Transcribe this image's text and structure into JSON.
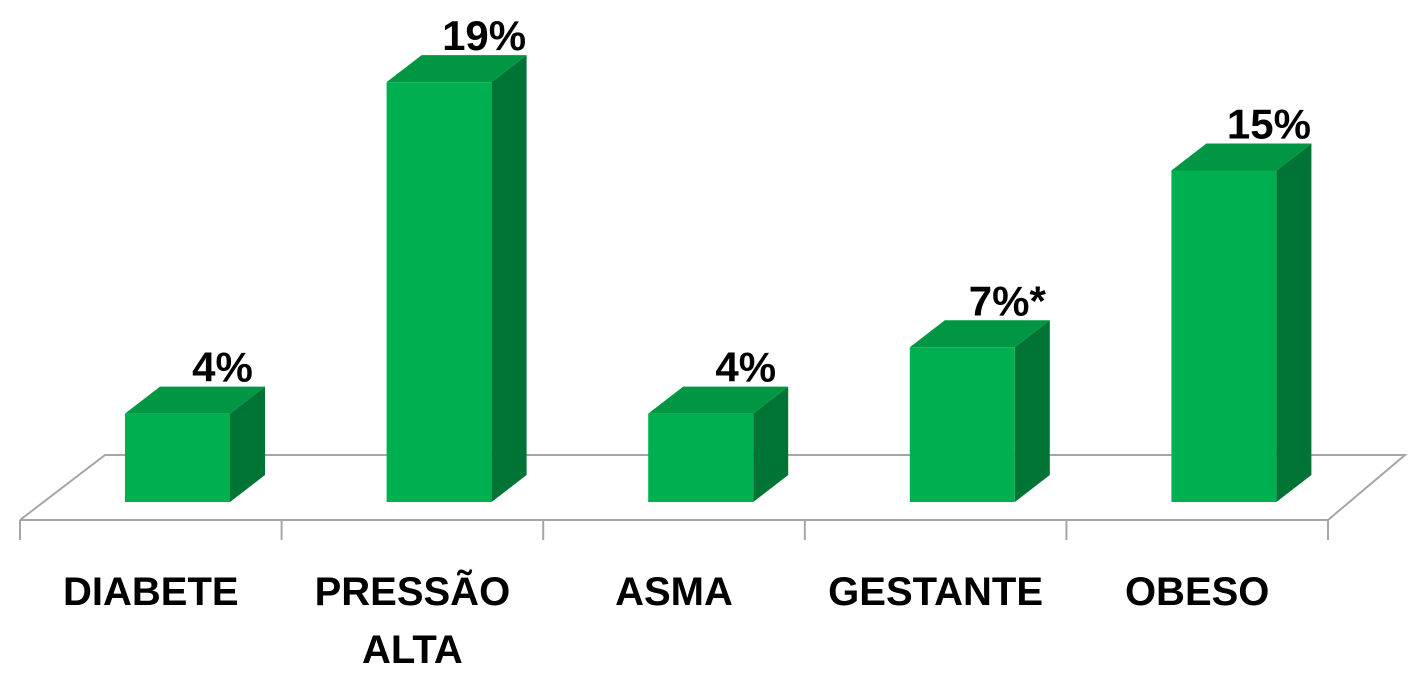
{
  "chart_data": {
    "type": "bar",
    "categories": [
      "DIABETE",
      "PRESSÃO ALTA",
      "ASMA",
      "GESTANTE",
      "OBESO"
    ],
    "values": [
      4,
      19,
      4,
      7,
      15
    ],
    "value_labels": [
      "4%",
      "19%",
      "4%",
      "7%*",
      "15%"
    ],
    "color": "#00b050"
  }
}
